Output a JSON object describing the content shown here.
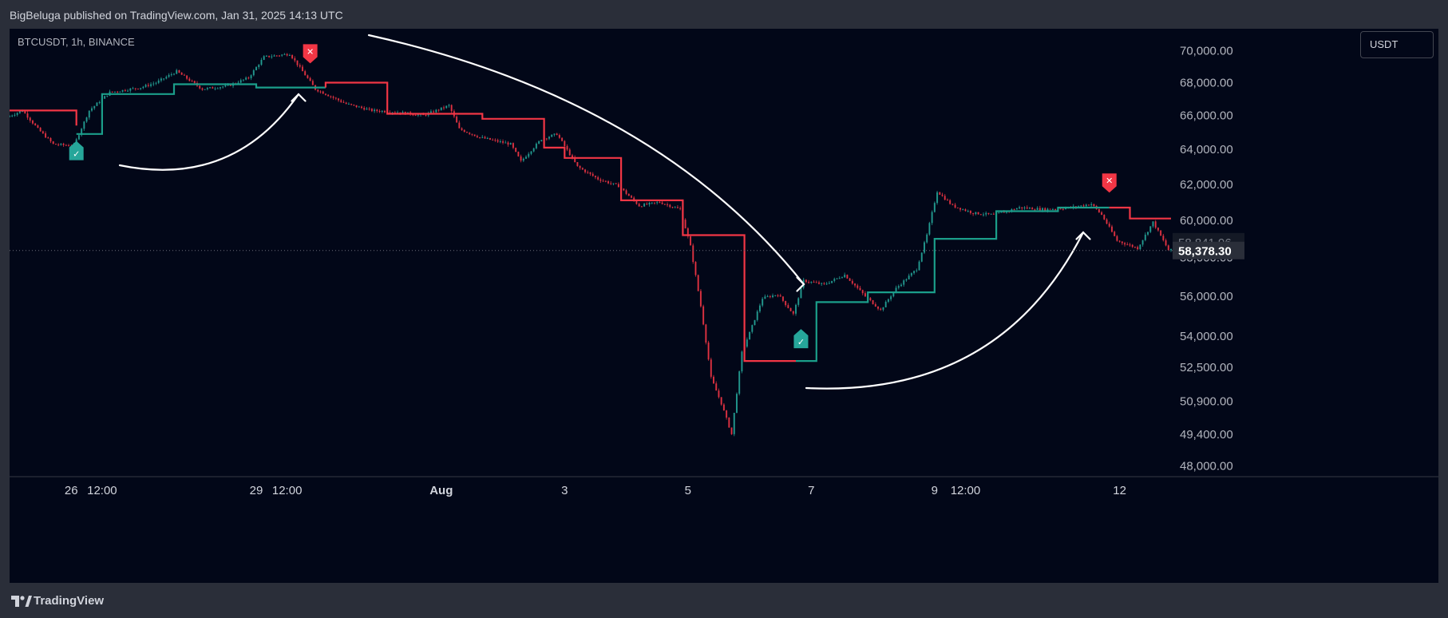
{
  "header": {
    "publisher_line": "BigBeluga published on TradingView.com, Jan 31, 2025 14:13 UTC"
  },
  "chart_header": {
    "symbol": "BTCUSDT, 1h, BINANCE",
    "currency_button": "USDT"
  },
  "footer": {
    "brand": "TradingView",
    "logo_icon": "tradingview-logo-icon"
  },
  "colors": {
    "background": "#020718",
    "bullish": "#26a69a",
    "bearish": "#f23645",
    "trail_up": "#1b9e8a",
    "trail_down": "#f23645",
    "text": "#d1d4dc",
    "grid_text": "#b2b5be",
    "price_label_bg": "#2a2e39",
    "annotation": "#ffffff"
  },
  "chart_data": {
    "type": "candlestick",
    "symbol": "BTCUSDT",
    "interval": "1h",
    "exchange": "BINANCE",
    "y_scale": "log",
    "ylim": [
      47600,
      71000
    ],
    "y_ticks": [
      {
        "label": "70,000.00",
        "value": 70000
      },
      {
        "label": "68,000.00",
        "value": 68000
      },
      {
        "label": "66,000.00",
        "value": 66000
      },
      {
        "label": "64,000.00",
        "value": 64000
      },
      {
        "label": "62,000.00",
        "value": 62000
      },
      {
        "label": "60,000.00",
        "value": 60000
      },
      {
        "label": "58,000.00",
        "value": 58000
      },
      {
        "label": "56,000.00",
        "value": 56000
      },
      {
        "label": "54,000.00",
        "value": 54000
      },
      {
        "label": "52,500.00",
        "value": 52500
      },
      {
        "label": "50,900.00",
        "value": 50900
      },
      {
        "label": "49,400.00",
        "value": 49400
      },
      {
        "label": "48,000.00",
        "value": 48000
      }
    ],
    "x_range": [
      "2024-07-25T00:00",
      "2024-08-12T20:00"
    ],
    "x_ticks": [
      {
        "label": "26",
        "time": "2024-07-26T00:00",
        "bold": false
      },
      {
        "label": "12:00",
        "time": "2024-07-26T12:00",
        "bold": false
      },
      {
        "label": "29",
        "time": "2024-07-29T00:00",
        "bold": false
      },
      {
        "label": "12:00",
        "time": "2024-07-29T12:00",
        "bold": false
      },
      {
        "label": "Aug",
        "time": "2024-08-01T00:00",
        "bold": true
      },
      {
        "label": "3",
        "time": "2024-08-03T00:00",
        "bold": false
      },
      {
        "label": "5",
        "time": "2024-08-05T00:00",
        "bold": false
      },
      {
        "label": "7",
        "time": "2024-08-07T00:00",
        "bold": false
      },
      {
        "label": "9",
        "time": "2024-08-09T00:00",
        "bold": false
      },
      {
        "label": "12:00",
        "time": "2024-08-09T12:00",
        "bold": false
      },
      {
        "label": "12",
        "time": "2024-08-12T00:00",
        "bold": false
      }
    ],
    "price_path": [
      [
        "2024-07-25T00:00",
        65900
      ],
      [
        "2024-07-25T06:00",
        66300
      ],
      [
        "2024-07-25T12:00",
        65200
      ],
      [
        "2024-07-25T18:00",
        64300
      ],
      [
        "2024-07-26T02:00",
        64200
      ],
      [
        "2024-07-26T08:00",
        66300
      ],
      [
        "2024-07-26T16:00",
        67400
      ],
      [
        "2024-07-27T04:00",
        67700
      ],
      [
        "2024-07-27T10:00",
        68000
      ],
      [
        "2024-07-27T18:00",
        68700
      ],
      [
        "2024-07-28T04:00",
        67600
      ],
      [
        "2024-07-28T14:00",
        67800
      ],
      [
        "2024-07-28T22:00",
        68300
      ],
      [
        "2024-07-29T04:00",
        69600
      ],
      [
        "2024-07-29T14:00",
        69800
      ],
      [
        "2024-07-30T00:00",
        67600
      ],
      [
        "2024-07-30T12:00",
        66700
      ],
      [
        "2024-07-30T22:00",
        66300
      ],
      [
        "2024-07-31T08:00",
        66200
      ],
      [
        "2024-07-31T18:00",
        66000
      ],
      [
        "2024-08-01T04:00",
        66600
      ],
      [
        "2024-08-01T08:00",
        65200
      ],
      [
        "2024-08-01T16:00",
        64700
      ],
      [
        "2024-08-01T22:00",
        64500
      ],
      [
        "2024-08-02T04:00",
        64300
      ],
      [
        "2024-08-02T08:00",
        63300
      ],
      [
        "2024-08-02T16:00",
        64600
      ],
      [
        "2024-08-02T22:00",
        64900
      ],
      [
        "2024-08-03T06:00",
        63000
      ],
      [
        "2024-08-03T14:00",
        62300
      ],
      [
        "2024-08-03T22:00",
        61900
      ],
      [
        "2024-08-04T06:00",
        60800
      ],
      [
        "2024-08-04T14:00",
        61000
      ],
      [
        "2024-08-04T22:00",
        60600
      ],
      [
        "2024-08-05T02:00",
        58600
      ],
      [
        "2024-08-05T06:00",
        55500
      ],
      [
        "2024-08-05T10:00",
        52000
      ],
      [
        "2024-08-05T14:00",
        50800
      ],
      [
        "2024-08-05T18:00",
        49400
      ],
      [
        "2024-08-05T22:00",
        53200
      ],
      [
        "2024-08-06T02:00",
        54500
      ],
      [
        "2024-08-06T06:00",
        55900
      ],
      [
        "2024-08-06T12:00",
        56100
      ],
      [
        "2024-08-06T18:00",
        55100
      ],
      [
        "2024-08-06T22:00",
        56800
      ],
      [
        "2024-08-07T06:00",
        56600
      ],
      [
        "2024-08-07T14:00",
        57100
      ],
      [
        "2024-08-07T22:00",
        56000
      ],
      [
        "2024-08-08T04:00",
        55300
      ],
      [
        "2024-08-08T10:00",
        56400
      ],
      [
        "2024-08-08T18:00",
        57400
      ],
      [
        "2024-08-08T22:00",
        59200
      ],
      [
        "2024-08-09T02:00",
        61600
      ],
      [
        "2024-08-09T08:00",
        60800
      ],
      [
        "2024-08-09T16:00",
        60400
      ],
      [
        "2024-08-10T00:00",
        60300
      ],
      [
        "2024-08-10T10:00",
        60700
      ],
      [
        "2024-08-10T20:00",
        60600
      ],
      [
        "2024-08-11T06:00",
        60700
      ],
      [
        "2024-08-11T14:00",
        60900
      ],
      [
        "2024-08-11T18:00",
        60300
      ],
      [
        "2024-08-12T00:00",
        58900
      ],
      [
        "2024-08-12T08:00",
        58500
      ],
      [
        "2024-08-12T14:00",
        59900
      ],
      [
        "2024-08-12T20:00",
        58400
      ]
    ],
    "trailing_stop": {
      "name": "",
      "segments": [
        {
          "side": "bear",
          "points": [
            [
              "2024-07-25T00:00",
              66300
            ],
            [
              "2024-07-26T02:00",
              66300
            ],
            [
              "2024-07-26T02:00",
              65400
            ]
          ]
        },
        {
          "side": "bull",
          "points": [
            [
              "2024-07-26T02:00",
              64900
            ],
            [
              "2024-07-26T12:00",
              64900
            ],
            [
              "2024-07-26T12:00",
              67300
            ],
            [
              "2024-07-27T16:00",
              67300
            ],
            [
              "2024-07-27T16:00",
              67900
            ],
            [
              "2024-07-29T00:00",
              67900
            ],
            [
              "2024-07-29T00:00",
              67700
            ],
            [
              "2024-07-30T03:00",
              67700
            ]
          ]
        },
        {
          "side": "bear",
          "points": [
            [
              "2024-07-30T03:00",
              67700
            ],
            [
              "2024-07-30T03:00",
              68000
            ],
            [
              "2024-07-31T03:00",
              68000
            ],
            [
              "2024-07-31T03:00",
              66100
            ],
            [
              "2024-08-01T16:00",
              66100
            ],
            [
              "2024-08-01T16:00",
              65800
            ],
            [
              "2024-08-02T16:00",
              65800
            ],
            [
              "2024-08-02T16:00",
              64100
            ],
            [
              "2024-08-03T00:00",
              64100
            ],
            [
              "2024-08-03T00:00",
              63500
            ],
            [
              "2024-08-03T22:00",
              63500
            ],
            [
              "2024-08-03T22:00",
              61100
            ],
            [
              "2024-08-04T22:00",
              61100
            ],
            [
              "2024-08-04T22:00",
              59200
            ],
            [
              "2024-08-05T22:00",
              59200
            ],
            [
              "2024-08-05T22:00",
              52800
            ],
            [
              "2024-08-06T18:00",
              52800
            ]
          ]
        },
        {
          "side": "bull",
          "points": [
            [
              "2024-08-06T18:00",
              52800
            ],
            [
              "2024-08-07T02:00",
              52800
            ],
            [
              "2024-08-07T02:00",
              55700
            ],
            [
              "2024-08-07T22:00",
              55700
            ],
            [
              "2024-08-07T22:00",
              56200
            ],
            [
              "2024-08-09T00:00",
              56200
            ],
            [
              "2024-08-09T00:00",
              59000
            ],
            [
              "2024-08-10T00:00",
              59000
            ],
            [
              "2024-08-10T00:00",
              60500
            ],
            [
              "2024-08-11T00:00",
              60500
            ],
            [
              "2024-08-11T00:00",
              60700
            ],
            [
              "2024-08-11T20:00",
              60700
            ]
          ]
        },
        {
          "side": "bear",
          "points": [
            [
              "2024-08-11T20:00",
              60700
            ],
            [
              "2024-08-12T04:00",
              60700
            ],
            [
              "2024-08-12T04:00",
              60100
            ],
            [
              "2024-08-12T20:00",
              60100
            ]
          ]
        }
      ]
    },
    "signals": [
      {
        "type": "buy",
        "symbol": "✓",
        "time": "2024-07-26T02:00",
        "price": 64300
      },
      {
        "type": "sell",
        "symbol": "✕",
        "time": "2024-07-29T21:00",
        "price": 69500
      },
      {
        "type": "buy",
        "symbol": "✓",
        "time": "2024-08-06T20:00",
        "price": 54200
      },
      {
        "type": "sell",
        "symbol": "✕",
        "time": "2024-08-11T20:00",
        "price": 61800
      }
    ],
    "price_labels": [
      {
        "label": "58,841.96",
        "value": 58841.96,
        "style": "faded"
      },
      {
        "label": "58,378.30",
        "value": 58378.3,
        "style": "current"
      }
    ],
    "current_price_line": 58378.3,
    "annotations": [
      {
        "name": "curved-arrow-up-1"
      },
      {
        "name": "curved-arrow-down"
      },
      {
        "name": "curved-arrow-up-2"
      }
    ],
    "grid": false,
    "legend": "none"
  }
}
